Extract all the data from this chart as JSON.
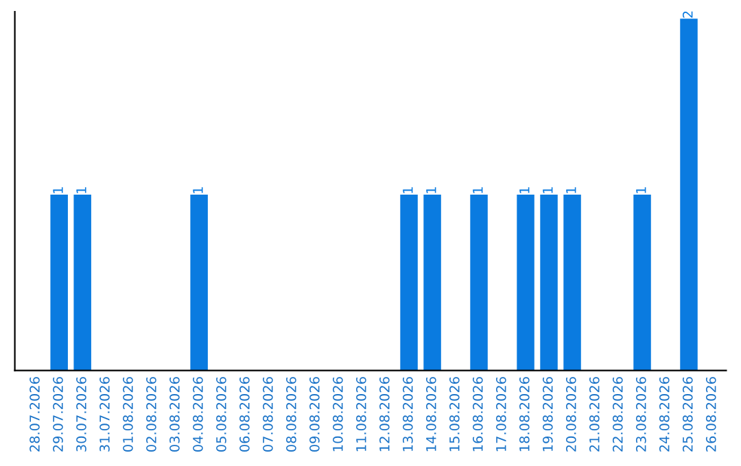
{
  "chart_data": {
    "type": "bar",
    "categories": [
      "28.07.2026",
      "29.07.2026",
      "30.07.2026",
      "31.07.2026",
      "01.08.2026",
      "02.08.2026",
      "03.08.2026",
      "04.08.2026",
      "05.08.2026",
      "06.08.2026",
      "07.08.2026",
      "08.08.2026",
      "09.08.2026",
      "10.08.2026",
      "11.08.2026",
      "12.08.2026",
      "13.08.2026",
      "14.08.2026",
      "15.08.2026",
      "16.08.2026",
      "17.08.2026",
      "18.08.2026",
      "19.08.2026",
      "20.08.2026",
      "21.08.2026",
      "22.08.2026",
      "23.08.2026",
      "24.08.2026",
      "25.08.2026",
      "26.08.2026"
    ],
    "values": [
      0,
      1,
      1,
      0,
      0,
      0,
      0,
      1,
      0,
      0,
      0,
      0,
      0,
      0,
      0,
      0,
      1,
      1,
      0,
      1,
      0,
      1,
      1,
      1,
      0,
      0,
      1,
      0,
      2,
      0
    ],
    "value_labels": [
      null,
      "1",
      "1",
      null,
      null,
      null,
      null,
      "1",
      null,
      null,
      null,
      null,
      null,
      null,
      null,
      null,
      "1",
      "1",
      null,
      "1",
      null,
      "1",
      "1",
      "1",
      null,
      null,
      "1",
      null,
      "2",
      null
    ],
    "color": "#0a7be0",
    "tick_labels": "x",
    "grid": false
  }
}
